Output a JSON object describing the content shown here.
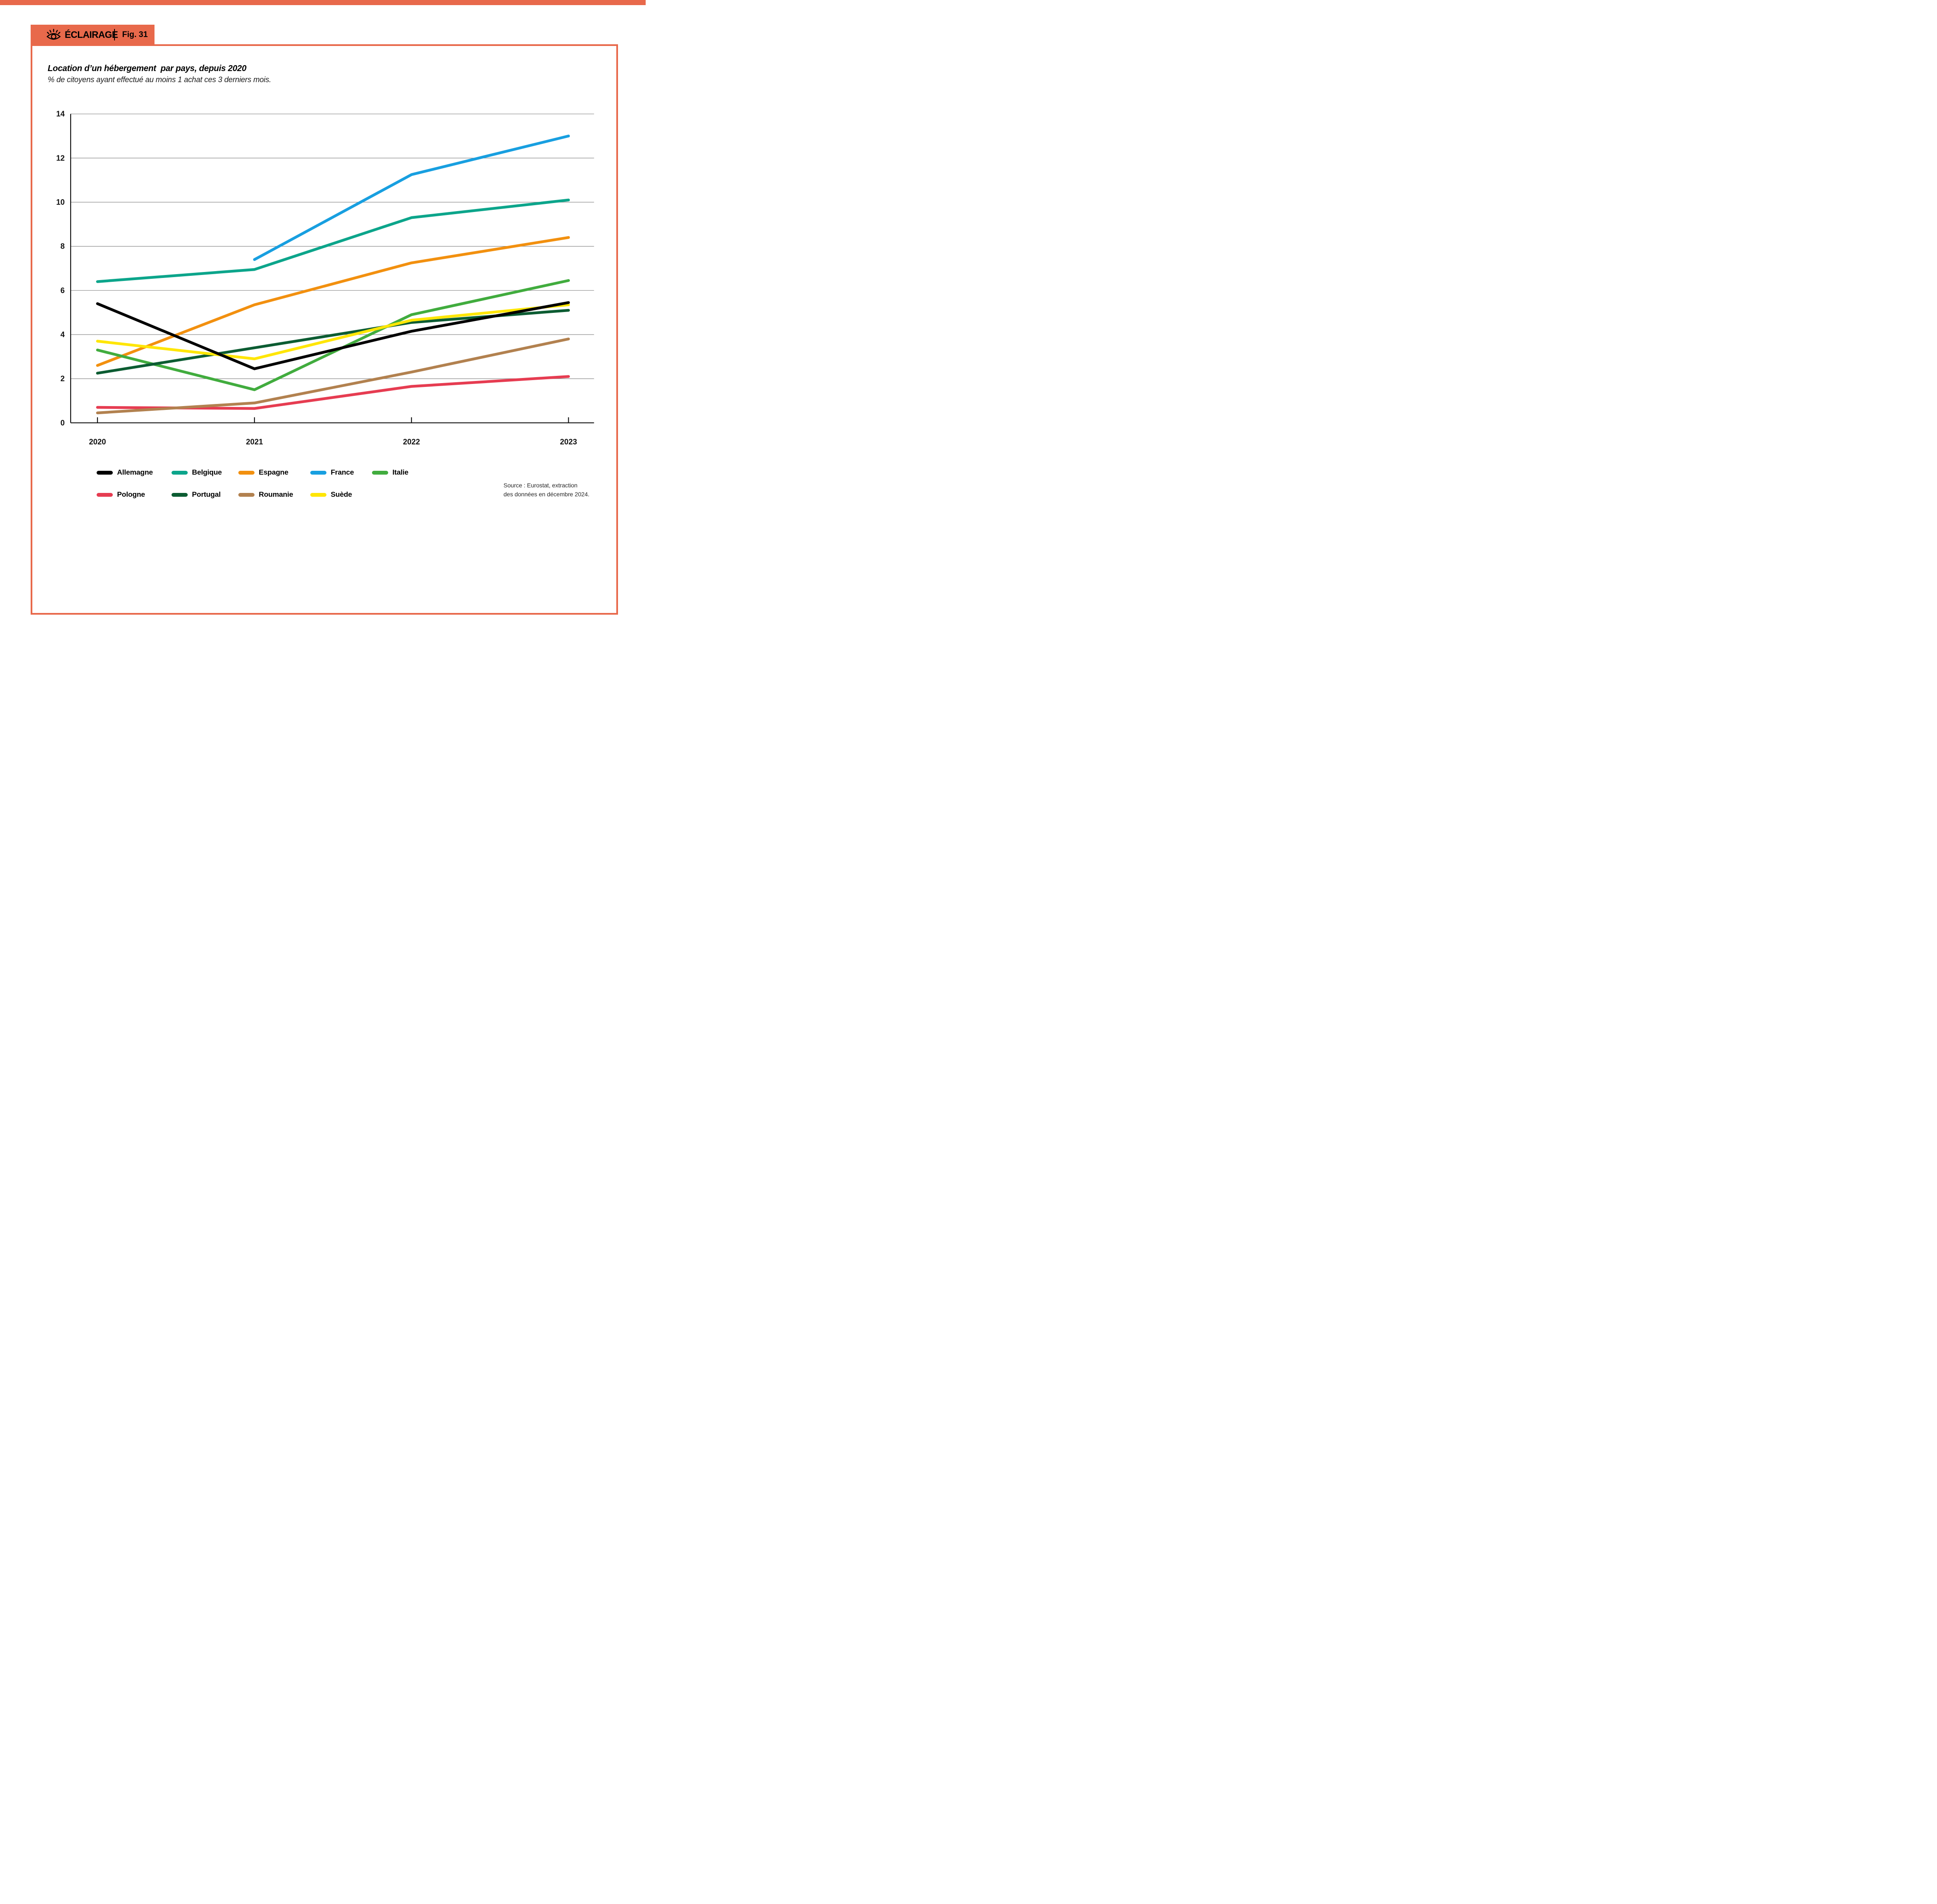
{
  "banner": {
    "brand": "ÉCLAIRAGE",
    "figure_label": "Fig. 31"
  },
  "header": {
    "title": "Location d’un hébergement  par pays, depuis 2020",
    "subtitle": "% de citoyens ayant effectué au moins 1 achat ces 3 derniers mois."
  },
  "source": {
    "line1": "Source : Eurostat, extraction",
    "line2": "des données en décembre 2024."
  },
  "colors": {
    "accent_orange": "#E8694B",
    "axis": "#111111",
    "grid": "#8c8c8c",
    "text": "#0f0f0f"
  },
  "chart_data": {
    "type": "line",
    "x": [
      2020,
      2021,
      2022,
      2023
    ],
    "x_tick_labels": [
      "2020",
      "2021",
      "2022",
      "2023"
    ],
    "ylim": [
      0,
      14
    ],
    "y_ticks": [
      0,
      2,
      4,
      6,
      8,
      10,
      12,
      14
    ],
    "grid": true,
    "legend_position": "bottom",
    "series": [
      {
        "name": "Belgique",
        "color": "#0CA58B",
        "values": [
          6.4,
          6.95,
          9.3,
          10.1
        ]
      },
      {
        "name": "Espagne",
        "color": "#F2900F",
        "values": [
          2.6,
          5.35,
          7.25,
          8.4
        ]
      },
      {
        "name": "France",
        "color": "#189FE0",
        "values": [
          null,
          7.4,
          11.25,
          13
        ]
      },
      {
        "name": "Italie",
        "color": "#41AC3E",
        "values": [
          3.3,
          1.5,
          4.9,
          6.45
        ]
      },
      {
        "name": "Pologne",
        "color": "#E63C51",
        "values": [
          0.7,
          0.65,
          1.65,
          2.1
        ]
      },
      {
        "name": "Portugal",
        "color": "#0C5C32",
        "values": [
          2.25,
          3.4,
          4.55,
          5.1
        ]
      },
      {
        "name": "Roumanie",
        "color": "#B2814F",
        "values": [
          0.45,
          0.9,
          2.3,
          3.8
        ]
      },
      {
        "name": "Suède",
        "color": "#FFE605",
        "values": [
          3.7,
          2.9,
          4.65,
          5.35
        ]
      },
      {
        "name": "Allemagne",
        "color": "#000000",
        "values": [
          5.4,
          2.45,
          4.15,
          5.45
        ]
      }
    ],
    "legend_rows": [
      [
        "Allemagne",
        "Belgique",
        "Espagne",
        "France",
        "Italie"
      ],
      [
        "Pologne",
        "Portugal",
        "Roumanie",
        "Suède"
      ]
    ]
  }
}
